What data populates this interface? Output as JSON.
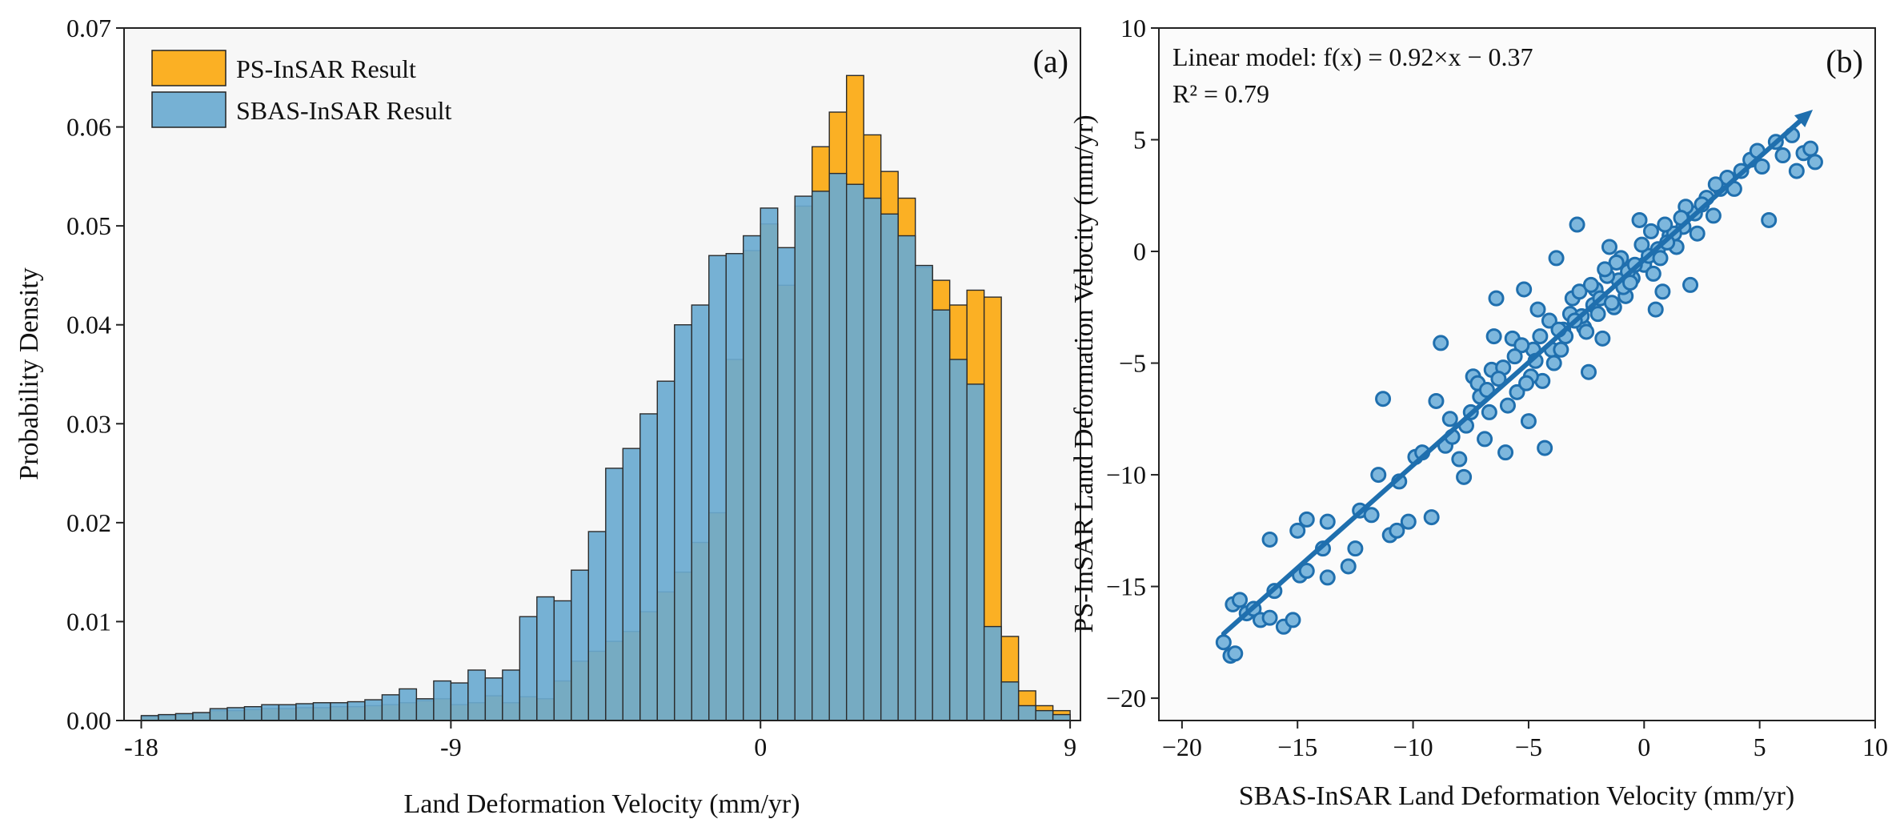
{
  "chart_data": [
    {
      "panel_label": "(a)",
      "type": "bar",
      "subtype": "histogram-overlay",
      "xlabel": "Land Deformation Velocity (mm/yr)",
      "ylabel": "Probability Density",
      "xlim": [
        -18.5,
        9.3
      ],
      "ylim": [
        0,
        0.07
      ],
      "xticks": [
        -18,
        -9,
        0,
        9
      ],
      "yticks": [
        0,
        0.01,
        0.02,
        0.03,
        0.04,
        0.05,
        0.06,
        0.07
      ],
      "ytick_labels": [
        "0.00",
        "0.01",
        "0.02",
        "0.03",
        "0.04",
        "0.05",
        "0.06",
        "0.07"
      ],
      "bins": {
        "start": -18,
        "width": 0.5,
        "count": 54
      },
      "legend_position": "top-left",
      "series": [
        {
          "name": "PS-InSAR Result",
          "color": "#FBB024",
          "values": [
            0.0004,
            0.0005,
            0.0006,
            0.0008,
            0.001,
            0.001,
            0.0011,
            0.0012,
            0.0012,
            0.0013,
            0.0013,
            0.0014,
            0.0014,
            0.0015,
            0.0016,
            0.0018,
            0.002,
            0.0022,
            0.0016,
            0.0018,
            0.0025,
            0.0018,
            0.0024,
            0.0022,
            0.004,
            0.006,
            0.007,
            0.008,
            0.009,
            0.011,
            0.013,
            0.015,
            0.018,
            0.021,
            0.0365,
            0.0475,
            0.0502,
            0.044,
            0.052,
            0.058,
            0.0615,
            0.0652,
            0.0592,
            0.0555,
            0.0528,
            0.0458,
            0.0445,
            0.042,
            0.0435,
            0.0428,
            0.0085,
            0.003,
            0.0015,
            0.001
          ]
        },
        {
          "name": "SBAS-InSAR Result",
          "color": "#6AAAD0",
          "values": [
            0.0005,
            0.0006,
            0.0007,
            0.0008,
            0.0012,
            0.0013,
            0.0014,
            0.0016,
            0.0016,
            0.0017,
            0.0018,
            0.0018,
            0.0019,
            0.0021,
            0.0026,
            0.0032,
            0.0022,
            0.004,
            0.0038,
            0.0051,
            0.0043,
            0.0051,
            0.0105,
            0.0125,
            0.0121,
            0.0152,
            0.0191,
            0.0255,
            0.0275,
            0.031,
            0.0343,
            0.04,
            0.042,
            0.047,
            0.0472,
            0.049,
            0.0518,
            0.0478,
            0.053,
            0.0535,
            0.0553,
            0.0542,
            0.0528,
            0.0512,
            0.049,
            0.046,
            0.0415,
            0.0365,
            0.034,
            0.0095,
            0.0039,
            0.0015,
            0.001,
            0.0006
          ]
        }
      ]
    },
    {
      "panel_label": "(b)",
      "type": "scatter",
      "xlabel": "SBAS-InSAR Land Deformation Velocity (mm/yr)",
      "ylabel": "PS-InSAR Land Deformation Velocity (mm/yr)",
      "xlim": [
        -21,
        10
      ],
      "ylim": [
        -21,
        10
      ],
      "xticks": [
        -20,
        -15,
        -10,
        -5,
        0,
        5,
        10
      ],
      "yticks": [
        -20,
        -15,
        -10,
        -5,
        0,
        5,
        10
      ],
      "annotations": [
        "Linear model: f(x) = 0.92×x − 0.37",
        "R² = 0.79"
      ],
      "point_color": "#7DB7DD",
      "point_edge_color": "#1F6FAE",
      "fit": {
        "slope": 0.92,
        "intercept": -0.37,
        "x_range": [
          -18.2,
          7.3
        ],
        "color": "#1F6FAE"
      },
      "series": [
        {
          "name": "points",
          "points": [
            [
              -18.2,
              -17.5
            ],
            [
              -17.9,
              -18.1
            ],
            [
              -17.7,
              -18.0
            ],
            [
              -17.8,
              -15.8
            ],
            [
              -17.5,
              -15.6
            ],
            [
              -17.2,
              -16.2
            ],
            [
              -16.9,
              -16.0
            ],
            [
              -16.6,
              -16.5
            ],
            [
              -16.2,
              -16.4
            ],
            [
              -16.0,
              -15.2
            ],
            [
              -15.6,
              -16.8
            ],
            [
              -15.2,
              -16.5
            ],
            [
              -14.9,
              -14.5
            ],
            [
              -15.0,
              -12.5
            ],
            [
              -14.6,
              -12.0
            ],
            [
              -16.2,
              -12.9
            ],
            [
              -13.7,
              -12.1
            ],
            [
              -13.7,
              -14.6
            ],
            [
              -12.8,
              -14.1
            ],
            [
              -12.5,
              -13.3
            ],
            [
              -12.3,
              -11.6
            ],
            [
              -11.8,
              -11.8
            ],
            [
              -11.0,
              -12.7
            ],
            [
              -10.7,
              -12.5
            ],
            [
              -10.6,
              -10.3
            ],
            [
              -10.2,
              -12.1
            ],
            [
              -9.9,
              -9.2
            ],
            [
              -9.6,
              -9.0
            ],
            [
              -9.2,
              -11.9
            ],
            [
              -9.0,
              -6.7
            ],
            [
              -8.8,
              -4.1
            ],
            [
              -8.6,
              -8.7
            ],
            [
              -8.3,
              -8.3
            ],
            [
              -8.0,
              -9.3
            ],
            [
              -7.8,
              -10.1
            ],
            [
              -7.5,
              -7.2
            ],
            [
              -7.4,
              -5.6
            ],
            [
              -7.2,
              -5.9
            ],
            [
              -6.9,
              -8.4
            ],
            [
              -6.6,
              -5.3
            ],
            [
              -6.5,
              -3.8
            ],
            [
              -6.4,
              -2.1
            ],
            [
              -6.0,
              -9.0
            ],
            [
              -5.7,
              -3.9
            ],
            [
              -5.5,
              -6.3
            ],
            [
              -5.2,
              -1.7
            ],
            [
              -5.0,
              -7.6
            ],
            [
              -4.8,
              -4.4
            ],
            [
              -4.6,
              -2.6
            ],
            [
              -4.3,
              -8.8
            ],
            [
              -4.0,
              -4.4
            ],
            [
              -3.8,
              -0.3
            ],
            [
              -3.5,
              -3.5
            ],
            [
              -3.1,
              -2.1
            ],
            [
              -2.9,
              1.2
            ],
            [
              -2.6,
              -3.4
            ],
            [
              -2.4,
              -5.4
            ],
            [
              -2.1,
              -1.7
            ],
            [
              -1.8,
              -3.9
            ],
            [
              -1.5,
              0.2
            ],
            [
              -1.3,
              -2.5
            ],
            [
              -1.0,
              -0.3
            ],
            [
              -0.8,
              -2.0
            ],
            [
              -0.5,
              -1.2
            ],
            [
              -0.2,
              1.4
            ],
            [
              0.0,
              -0.6
            ],
            [
              0.3,
              0.9
            ],
            [
              0.5,
              -2.6
            ],
            [
              0.8,
              -1.8
            ],
            [
              1.1,
              0.7
            ],
            [
              1.4,
              0.2
            ],
            [
              1.7,
              1.1
            ],
            [
              2.0,
              -1.5
            ],
            [
              2.3,
              0.8
            ],
            [
              2.7,
              2.4
            ],
            [
              3.0,
              1.6
            ],
            [
              3.3,
              2.8
            ],
            [
              3.6,
              3.3
            ],
            [
              3.9,
              2.8
            ],
            [
              4.2,
              3.6
            ],
            [
              4.6,
              4.1
            ],
            [
              4.9,
              4.5
            ],
            [
              5.1,
              3.8
            ],
            [
              5.4,
              1.4
            ],
            [
              5.7,
              4.9
            ],
            [
              6.0,
              4.3
            ],
            [
              6.4,
              5.2
            ],
            [
              6.6,
              3.6
            ],
            [
              6.9,
              4.4
            ],
            [
              7.2,
              4.6
            ],
            [
              7.4,
              4.0
            ],
            [
              -14.6,
              -14.3
            ],
            [
              -13.9,
              -13.3
            ],
            [
              -11.5,
              -10.0
            ],
            [
              -11.3,
              -6.6
            ],
            [
              -8.4,
              -7.5
            ],
            [
              -7.1,
              -6.5
            ],
            [
              -6.1,
              -5.2
            ],
            [
              -5.9,
              -6.9
            ],
            [
              -5.3,
              -4.2
            ],
            [
              -4.4,
              -5.8
            ],
            [
              -3.6,
              -4.4
            ],
            [
              -3.2,
              -2.8
            ],
            [
              -2.7,
              -2.9
            ],
            [
              -2.2,
              -2.4
            ],
            [
              -1.9,
              -2.1
            ],
            [
              -1.1,
              -1.3
            ],
            [
              -0.7,
              -0.9
            ],
            [
              0.2,
              -0.2
            ],
            [
              0.6,
              0.1
            ],
            [
              1.3,
              0.8
            ],
            [
              2.2,
              1.7
            ],
            [
              -4.1,
              -3.1
            ],
            [
              -3.4,
              -3.8
            ],
            [
              -2.5,
              -3.6
            ],
            [
              -1.6,
              -1.1
            ],
            [
              -0.9,
              -1.6
            ],
            [
              0.4,
              -1.0
            ],
            [
              -6.8,
              -6.2
            ],
            [
              -6.3,
              -5.7
            ],
            [
              -4.7,
              -4.9
            ],
            [
              -3.9,
              -5.0
            ],
            [
              -3.0,
              -3.1
            ],
            [
              -2.0,
              -2.8
            ],
            [
              -1.4,
              -2.3
            ],
            [
              -0.4,
              -0.6
            ],
            [
              1.0,
              0.4
            ],
            [
              1.8,
              2.0
            ],
            [
              -5.6,
              -4.7
            ],
            [
              -4.9,
              -5.6
            ],
            [
              -3.7,
              -3.5
            ],
            [
              -2.8,
              -1.8
            ],
            [
              -1.2,
              -0.5
            ],
            [
              -0.1,
              0.3
            ],
            [
              0.9,
              1.2
            ],
            [
              2.5,
              2.1
            ],
            [
              -7.7,
              -7.8
            ],
            [
              -6.7,
              -7.2
            ],
            [
              -5.1,
              -5.9
            ],
            [
              -4.5,
              -3.8
            ],
            [
              -2.3,
              -1.5
            ],
            [
              -1.7,
              -0.8
            ],
            [
              -0.6,
              -1.4
            ],
            [
              0.7,
              -0.3
            ],
            [
              1.6,
              1.5
            ],
            [
              3.1,
              3.0
            ]
          ]
        }
      ]
    }
  ]
}
